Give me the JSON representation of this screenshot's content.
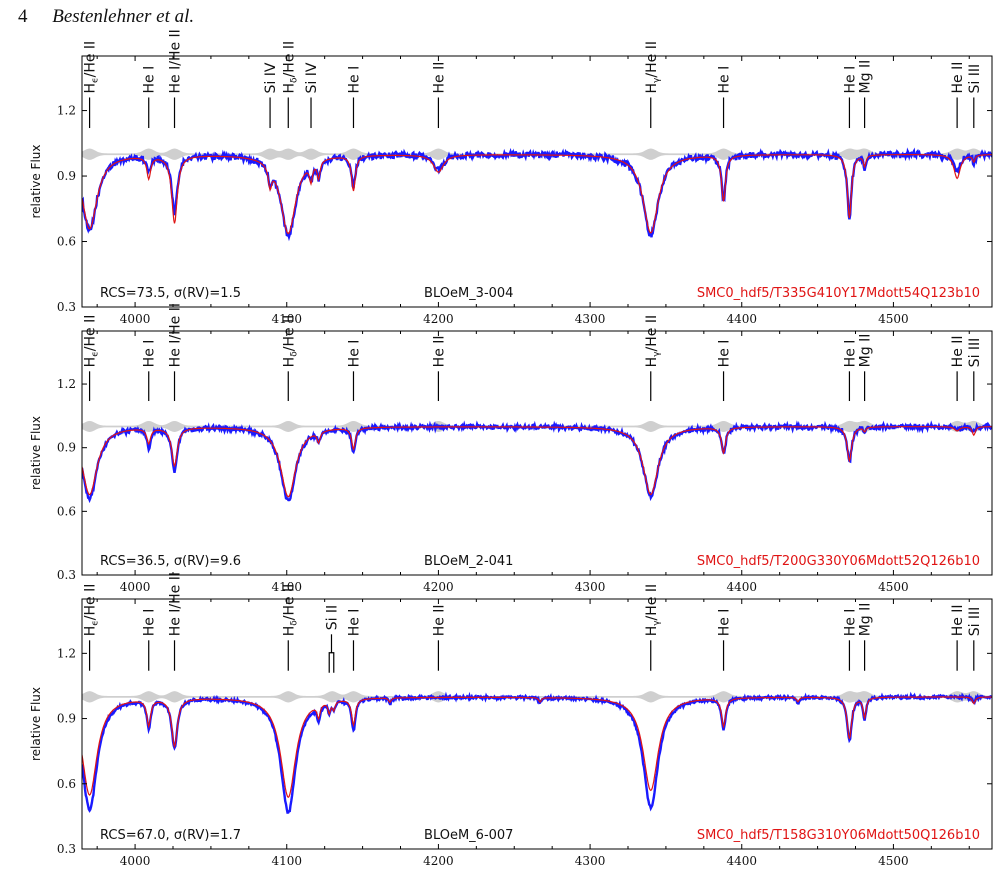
{
  "header": {
    "page_number": "4",
    "authors": "Bestenlehner et al."
  },
  "chart_data": [
    {
      "type": "line",
      "xlim": [
        3965,
        4565
      ],
      "ylim": [
        0.3,
        1.45
      ],
      "xticks": [
        4000,
        4100,
        4200,
        4300,
        4400,
        4500
      ],
      "yticks": [
        0.3,
        0.6,
        0.9,
        1.2
      ],
      "ylabel": "relative Flux",
      "rcs_label": "RCS=73.5, σ(RV)=1.5",
      "star_label": "BLOeM_3-004",
      "model_label": "SMC0_hdf5/T335G410Y17Mdott54Q123b10",
      "annotations": [
        {
          "text": "Hϵ/He II",
          "x": 3970
        },
        {
          "text": "He I",
          "x": 4009
        },
        {
          "text": "He I/He II",
          "x": 4026
        },
        {
          "text": "Si IV",
          "x": 4089
        },
        {
          "text": "Hδ/He II",
          "x": 4101
        },
        {
          "text": "Si IV",
          "x": 4116
        },
        {
          "text": "He I",
          "x": 4144
        },
        {
          "text": "He II",
          "x": 4200
        },
        {
          "text": "Hγ/He II",
          "x": 4340
        },
        {
          "text": "He I",
          "x": 4388
        },
        {
          "text": "He I",
          "x": 4471
        },
        {
          "text": "Mg II",
          "x": 4481
        },
        {
          "text": "He II",
          "x": 4542
        },
        {
          "text": "Si III",
          "x": 4553
        }
      ],
      "lines": [
        {
          "center": 3970,
          "width": 6,
          "obs": 0.65,
          "model": 0.66
        },
        {
          "center": 4009,
          "width": 1.5,
          "obs": 0.93,
          "model": 0.9
        },
        {
          "center": 4026,
          "width": 2.2,
          "obs": 0.73,
          "model": 0.69
        },
        {
          "center": 4089,
          "width": 1.3,
          "obs": 0.92,
          "model": 0.91
        },
        {
          "center": 4101,
          "width": 6,
          "obs": 0.63,
          "model": 0.64
        },
        {
          "center": 4116,
          "width": 1.2,
          "obs": 0.93,
          "model": 0.92
        },
        {
          "center": 4121,
          "width": 1.2,
          "obs": 0.92,
          "model": 0.92
        },
        {
          "center": 4144,
          "width": 1.5,
          "obs": 0.86,
          "model": 0.84
        },
        {
          "center": 4200,
          "width": 4,
          "obs": 0.93,
          "model": 0.92
        },
        {
          "center": 4340,
          "width": 6,
          "obs": 0.63,
          "model": 0.64
        },
        {
          "center": 4388,
          "width": 1.6,
          "obs": 0.79,
          "model": 0.79
        },
        {
          "center": 4471,
          "width": 1.6,
          "obs": 0.7,
          "model": 0.71
        },
        {
          "center": 4481,
          "width": 1.0,
          "obs": 0.94,
          "model": 0.95
        },
        {
          "center": 4542,
          "width": 2.5,
          "obs": 0.92,
          "model": 0.89
        },
        {
          "center": 4553,
          "width": 1.0,
          "obs": 0.96,
          "model": 0.97
        }
      ]
    },
    {
      "type": "line",
      "xlim": [
        3965,
        4565
      ],
      "ylim": [
        0.3,
        1.45
      ],
      "xticks": [
        4000,
        4100,
        4200,
        4300,
        4400,
        4500
      ],
      "yticks": [
        0.3,
        0.6,
        0.9,
        1.2
      ],
      "ylabel": "relative Flux",
      "rcs_label": "RCS=36.5, σ(RV)=9.6",
      "star_label": "BLOeM_2-041",
      "model_label": "SMC0_hdf5/T200G330Y06Mdott52Q126b10",
      "annotations": [
        {
          "text": "Hϵ/He II",
          "x": 3970
        },
        {
          "text": "He I",
          "x": 4009
        },
        {
          "text": "He I/He II",
          "x": 4026
        },
        {
          "text": "Hδ/He II",
          "x": 4101
        },
        {
          "text": "He I",
          "x": 4144
        },
        {
          "text": "He II",
          "x": 4200
        },
        {
          "text": "Hγ/He II",
          "x": 4340
        },
        {
          "text": "He I",
          "x": 4388
        },
        {
          "text": "He I",
          "x": 4471
        },
        {
          "text": "Mg II",
          "x": 4481
        },
        {
          "text": "He II",
          "x": 4542
        },
        {
          "text": "Si III",
          "x": 4553
        }
      ],
      "lines": [
        {
          "center": 3970,
          "width": 6,
          "obs": 0.66,
          "model": 0.68
        },
        {
          "center": 4009,
          "width": 1.5,
          "obs": 0.91,
          "model": 0.93
        },
        {
          "center": 4026,
          "width": 2.2,
          "obs": 0.8,
          "model": 0.82
        },
        {
          "center": 4101,
          "width": 6,
          "obs": 0.65,
          "model": 0.67
        },
        {
          "center": 4121,
          "width": 1.2,
          "obs": 0.95,
          "model": 0.95
        },
        {
          "center": 4144,
          "width": 1.5,
          "obs": 0.88,
          "model": 0.9
        },
        {
          "center": 4340,
          "width": 6,
          "obs": 0.67,
          "model": 0.68
        },
        {
          "center": 4388,
          "width": 1.6,
          "obs": 0.87,
          "model": 0.88
        },
        {
          "center": 4471,
          "width": 1.8,
          "obs": 0.83,
          "model": 0.84
        },
        {
          "center": 4481,
          "width": 1.0,
          "obs": 0.98,
          "model": 0.98
        },
        {
          "center": 4542,
          "width": 2.0,
          "obs": 0.99,
          "model": 0.98
        },
        {
          "center": 4553,
          "width": 1.2,
          "obs": 0.98,
          "model": 0.96
        }
      ]
    },
    {
      "type": "line",
      "xlim": [
        3965,
        4565
      ],
      "ylim": [
        0.3,
        1.45
      ],
      "xticks": [
        4000,
        4100,
        4200,
        4300,
        4400,
        4500
      ],
      "yticks": [
        0.3,
        0.6,
        0.9,
        1.2
      ],
      "ylabel": "relative Flux",
      "rcs_label": "RCS=67.0, σ(RV)=1.7",
      "star_label": "BLOeM_6-007",
      "model_label": "SMC0_hdf5/T158G310Y06Mdott50Q126b10",
      "annotations": [
        {
          "text": "Hϵ/He II",
          "x": 3970
        },
        {
          "text": "He I",
          "x": 4009
        },
        {
          "text": "He I/He II",
          "x": 4026
        },
        {
          "text": "Hδ/He II",
          "x": 4101
        },
        {
          "text": "Si II",
          "x": 4130,
          "bracket": [
            4128,
            4131
          ]
        },
        {
          "text": "He I",
          "x": 4144
        },
        {
          "text": "He II",
          "x": 4200
        },
        {
          "text": "Hγ/He II",
          "x": 4340
        },
        {
          "text": "He I",
          "x": 4388
        },
        {
          "text": "He I",
          "x": 4471
        },
        {
          "text": "Mg II",
          "x": 4481
        },
        {
          "text": "He II",
          "x": 4542
        },
        {
          "text": "Si III",
          "x": 4553
        }
      ],
      "lines": [
        {
          "center": 3970,
          "width": 6,
          "obs": 0.48,
          "model": 0.55
        },
        {
          "center": 4009,
          "width": 1.5,
          "obs": 0.87,
          "model": 0.88
        },
        {
          "center": 4026,
          "width": 2.2,
          "obs": 0.77,
          "model": 0.78
        },
        {
          "center": 4101,
          "width": 6,
          "obs": 0.47,
          "model": 0.54
        },
        {
          "center": 4121,
          "width": 1.2,
          "obs": 0.93,
          "model": 0.94
        },
        {
          "center": 4128,
          "width": 1.0,
          "obs": 0.95,
          "model": 0.95
        },
        {
          "center": 4131,
          "width": 1.0,
          "obs": 0.96,
          "model": 0.96
        },
        {
          "center": 4144,
          "width": 1.5,
          "obs": 0.85,
          "model": 0.88
        },
        {
          "center": 4168,
          "width": 1.0,
          "obs": 0.97,
          "model": 0.98
        },
        {
          "center": 4267,
          "width": 1.0,
          "obs": 0.98,
          "model": 0.98
        },
        {
          "center": 4340,
          "width": 6,
          "obs": 0.49,
          "model": 0.57
        },
        {
          "center": 4388,
          "width": 1.6,
          "obs": 0.86,
          "model": 0.87
        },
        {
          "center": 4437,
          "width": 1.0,
          "obs": 0.97,
          "model": 0.98
        },
        {
          "center": 4471,
          "width": 1.8,
          "obs": 0.8,
          "model": 0.81
        },
        {
          "center": 4481,
          "width": 1.2,
          "obs": 0.9,
          "model": 0.91
        },
        {
          "center": 4553,
          "width": 1.2,
          "obs": 0.98,
          "model": 0.97
        }
      ]
    }
  ]
}
